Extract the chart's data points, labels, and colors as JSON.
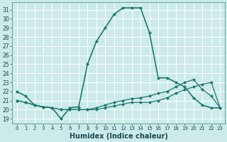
{
  "title": "",
  "xlabel": "Humidex (Indice chaleur)",
  "bg_color": "#cceaea",
  "grid_color": "#ffffff",
  "line_color": "#1a7a6e",
  "xlim": [
    -0.5,
    23.5
  ],
  "ylim": [
    18.5,
    31.8
  ],
  "yticks": [
    19,
    20,
    21,
    22,
    23,
    24,
    25,
    26,
    27,
    28,
    29,
    30,
    31
  ],
  "xticks": [
    0,
    1,
    2,
    3,
    4,
    5,
    6,
    7,
    8,
    9,
    10,
    11,
    12,
    13,
    14,
    15,
    16,
    17,
    18,
    19,
    20,
    21,
    22,
    23
  ],
  "line1_x": [
    0,
    1,
    2,
    3,
    4,
    5,
    6,
    7,
    8,
    9,
    10,
    11,
    12,
    13,
    14,
    15,
    16,
    17,
    18,
    19,
    20,
    21,
    22,
    23
  ],
  "line1_y": [
    22.0,
    21.5,
    20.5,
    20.3,
    20.2,
    19.0,
    20.2,
    20.3,
    25.0,
    27.5,
    29.0,
    30.5,
    31.2,
    31.2,
    31.2,
    28.5,
    23.5,
    23.5,
    23.0,
    22.5,
    21.3,
    20.5,
    20.2,
    20.2
  ],
  "line2_x": [
    0,
    1,
    2,
    3,
    4,
    5,
    6,
    7,
    8,
    9,
    10,
    11,
    12,
    13,
    14,
    15,
    16,
    17,
    18,
    19,
    20,
    21,
    22,
    23
  ],
  "line2_y": [
    21.0,
    20.8,
    20.5,
    20.3,
    20.2,
    20.0,
    20.0,
    20.0,
    20.0,
    20.0,
    20.2,
    20.4,
    20.6,
    20.8,
    20.8,
    20.8,
    21.0,
    21.3,
    21.8,
    22.2,
    22.5,
    22.8,
    23.0,
    20.2
  ],
  "line3_x": [
    0,
    1,
    2,
    3,
    4,
    5,
    6,
    7,
    8,
    9,
    10,
    11,
    12,
    13,
    14,
    15,
    16,
    17,
    18,
    19,
    20,
    21,
    22,
    23
  ],
  "line3_y": [
    21.0,
    20.8,
    20.5,
    20.3,
    20.2,
    20.0,
    20.0,
    20.0,
    20.0,
    20.2,
    20.5,
    20.8,
    21.0,
    21.2,
    21.3,
    21.5,
    21.8,
    22.0,
    22.5,
    23.0,
    23.3,
    22.2,
    21.5,
    20.2
  ],
  "marker_size": 2.5,
  "linewidth1": 1.2,
  "linewidth2": 0.9,
  "tick_fontsize": 5.5,
  "xlabel_fontsize": 7
}
